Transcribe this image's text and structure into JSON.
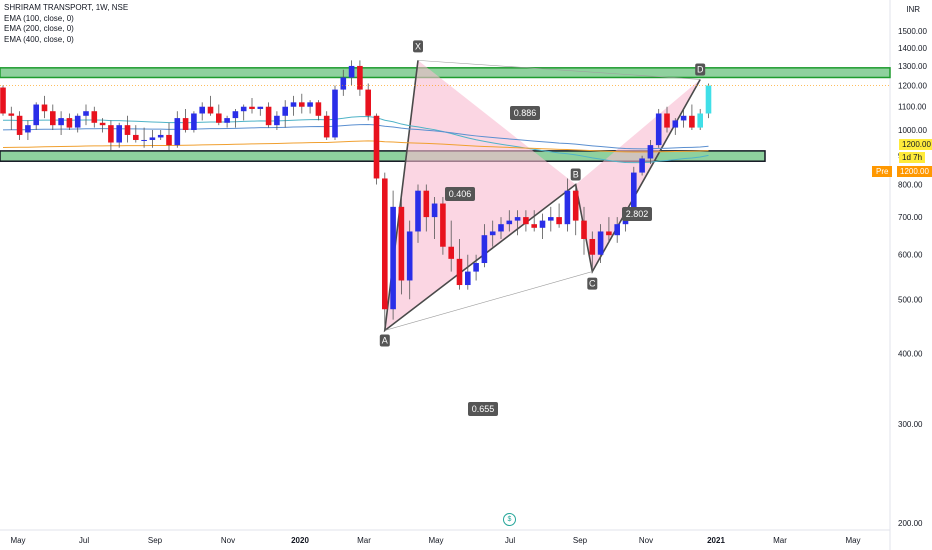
{
  "legend": {
    "symbol_line": "SHRIRAM TRANSPORT, 1W, NSE",
    "ema100": "EMA (100, close, 0)",
    "ema200": "EMA (200, close, 0)",
    "ema400": "EMA (400, close, 0)"
  },
  "currency": "INR",
  "price_tags": {
    "last": "1200.00",
    "countdown": "1d 7h",
    "pre_label": "Pre",
    "pre_value": "1200.00"
  },
  "colors": {
    "up_candle": "#2a2ee8",
    "down_candle": "#e8121e",
    "up_pre_candle": "#40dfe8",
    "down_pre_candle": "#f6ea3b",
    "zone_fill": "#8fd19e",
    "zone_border": "#1e9c2e",
    "harmonic_fill": "#f8bbd0",
    "ema100": "#4fb3c7",
    "ema200": "#5b8fd0",
    "ema400": "#f0a030"
  },
  "chart_data": {
    "type": "candlestick",
    "title": "SHRIRAM TRANSPORT, 1W, NSE",
    "ylabel": "INR",
    "ylim": [
      180,
      1560
    ],
    "y_scale": "log",
    "y_ticks": [
      200,
      300,
      400,
      500,
      600,
      700,
      800,
      900,
      1000,
      1100,
      1200,
      1300,
      1400,
      1500
    ],
    "x_tick_labels": [
      "May",
      "Jul",
      "Sep",
      "Nov",
      "2020",
      "Mar",
      "May",
      "Jul",
      "Sep",
      "Nov",
      "2021",
      "Mar",
      "May"
    ],
    "zones": [
      {
        "low": 1240,
        "high": 1290
      },
      {
        "low": 880,
        "high": 918
      }
    ],
    "harmonic_pattern": {
      "points": [
        {
          "label": "X",
          "price": 1330
        },
        {
          "label": "A",
          "price": 440
        },
        {
          "label": "B",
          "price": 800
        },
        {
          "label": "C",
          "price": 560
        },
        {
          "label": "D",
          "price": 1230
        }
      ],
      "ratios": [
        "0.886",
        "0.406",
        "2.802",
        "0.655"
      ]
    },
    "candles": [
      [
        1190,
        1200,
        1060,
        1070
      ],
      [
        1070,
        1100,
        1000,
        1060
      ],
      [
        1060,
        1080,
        960,
        980
      ],
      [
        990,
        1040,
        960,
        1020
      ],
      [
        1020,
        1120,
        1000,
        1110
      ],
      [
        1110,
        1150,
        1050,
        1080
      ],
      [
        1080,
        1110,
        1000,
        1020
      ],
      [
        1020,
        1080,
        980,
        1050
      ],
      [
        1050,
        1070,
        1000,
        1010
      ],
      [
        1010,
        1070,
        990,
        1060
      ],
      [
        1060,
        1110,
        1020,
        1080
      ],
      [
        1080,
        1100,
        1010,
        1030
      ],
      [
        1030,
        1050,
        990,
        1020
      ],
      [
        1020,
        1040,
        920,
        950
      ],
      [
        950,
        1030,
        930,
        1020
      ],
      [
        1020,
        1060,
        950,
        980
      ],
      [
        980,
        1020,
        950,
        960
      ],
      [
        960,
        1010,
        930,
        960
      ],
      [
        960,
        1000,
        930,
        970
      ],
      [
        970,
        1000,
        960,
        980
      ],
      [
        980,
        1030,
        920,
        940
      ],
      [
        940,
        1080,
        930,
        1050
      ],
      [
        1050,
        1090,
        990,
        1000
      ],
      [
        1000,
        1080,
        990,
        1070
      ],
      [
        1070,
        1120,
        1040,
        1100
      ],
      [
        1100,
        1150,
        1060,
        1070
      ],
      [
        1070,
        1110,
        1020,
        1030
      ],
      [
        1030,
        1060,
        1010,
        1050
      ],
      [
        1050,
        1090,
        1010,
        1080
      ],
      [
        1080,
        1110,
        1040,
        1100
      ],
      [
        1100,
        1140,
        1070,
        1090
      ],
      [
        1090,
        1100,
        1060,
        1100
      ],
      [
        1100,
        1120,
        1010,
        1020
      ],
      [
        1020,
        1080,
        1000,
        1060
      ],
      [
        1060,
        1130,
        1010,
        1100
      ],
      [
        1100,
        1150,
        1060,
        1120
      ],
      [
        1120,
        1160,
        1070,
        1100
      ],
      [
        1100,
        1130,
        1070,
        1120
      ],
      [
        1120,
        1130,
        1040,
        1060
      ],
      [
        1060,
        1080,
        960,
        970
      ],
      [
        970,
        1200,
        960,
        1180
      ],
      [
        1180,
        1280,
        1150,
        1240
      ],
      [
        1240,
        1330,
        1200,
        1300
      ],
      [
        1300,
        1330,
        1150,
        1180
      ],
      [
        1180,
        1210,
        1040,
        1060
      ],
      [
        1060,
        1070,
        800,
        820
      ],
      [
        820,
        840,
        440,
        480
      ],
      [
        480,
        780,
        460,
        730
      ],
      [
        730,
        760,
        510,
        540
      ],
      [
        540,
        690,
        500,
        660
      ],
      [
        660,
        800,
        630,
        780
      ],
      [
        780,
        800,
        660,
        700
      ],
      [
        700,
        760,
        640,
        740
      ],
      [
        740,
        760,
        600,
        620
      ],
      [
        620,
        690,
        560,
        590
      ],
      [
        590,
        640,
        520,
        530
      ],
      [
        530,
        600,
        520,
        560
      ],
      [
        560,
        600,
        540,
        580
      ],
      [
        580,
        680,
        570,
        650
      ],
      [
        650,
        690,
        620,
        660
      ],
      [
        660,
        700,
        640,
        680
      ],
      [
        680,
        720,
        660,
        690
      ],
      [
        690,
        720,
        650,
        700
      ],
      [
        700,
        720,
        660,
        680
      ],
      [
        680,
        720,
        660,
        670
      ],
      [
        670,
        710,
        640,
        690
      ],
      [
        690,
        730,
        660,
        700
      ],
      [
        700,
        740,
        670,
        680
      ],
      [
        680,
        820,
        660,
        780
      ],
      [
        780,
        800,
        650,
        690
      ],
      [
        690,
        730,
        600,
        640
      ],
      [
        640,
        660,
        560,
        600
      ],
      [
        600,
        680,
        580,
        660
      ],
      [
        660,
        700,
        630,
        650
      ],
      [
        650,
        700,
        630,
        680
      ],
      [
        680,
        730,
        660,
        720
      ],
      [
        720,
        860,
        700,
        840
      ],
      [
        840,
        900,
        830,
        890
      ],
      [
        890,
        960,
        870,
        940
      ],
      [
        940,
        1090,
        930,
        1070
      ],
      [
        1070,
        1100,
        990,
        1010
      ],
      [
        1010,
        1050,
        980,
        1040
      ],
      [
        1040,
        1090,
        1010,
        1060
      ],
      [
        1060,
        1110,
        1000,
        1010
      ],
      [
        1010,
        1090,
        1000,
        1070
      ],
      [
        1070,
        1210,
        1050,
        1200
      ]
    ]
  }
}
